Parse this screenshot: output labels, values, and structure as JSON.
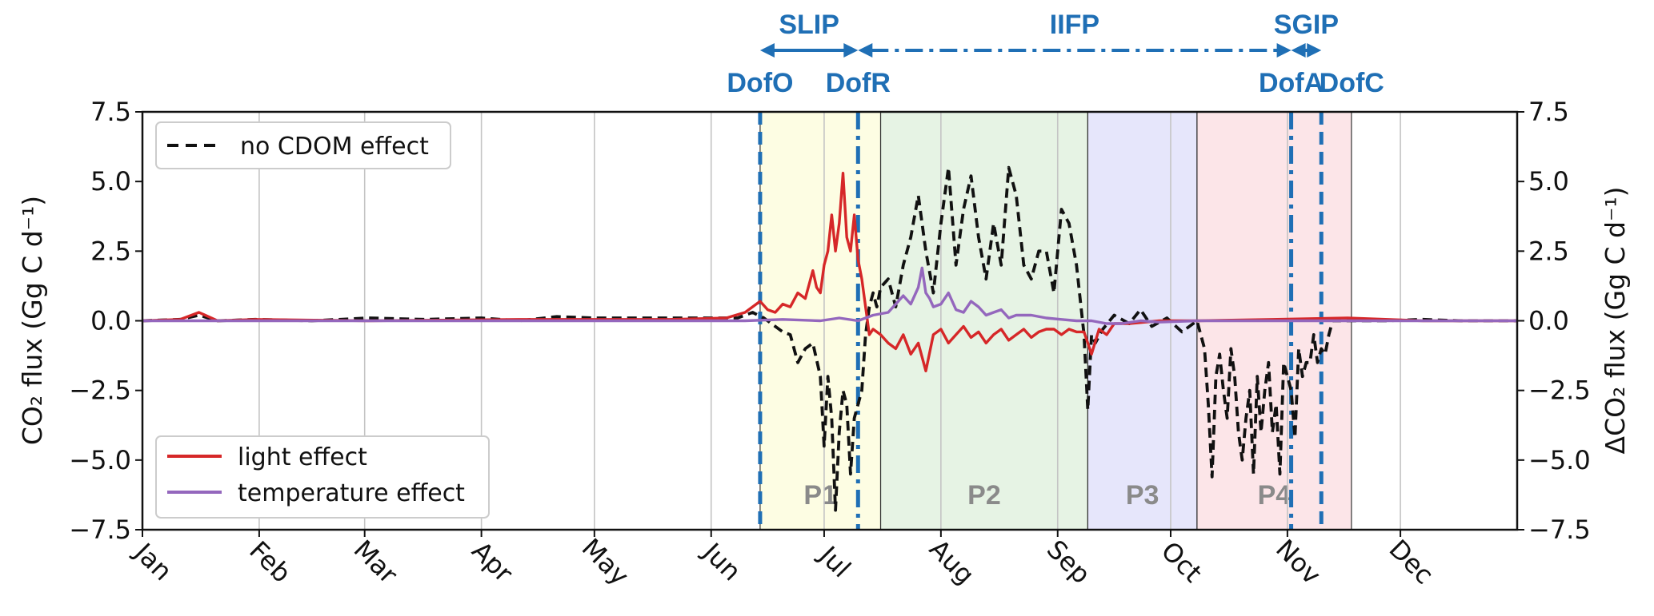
{
  "chart_data": {
    "type": "line",
    "ylabel_left": "CO₂ flux (Gg C d⁻¹)",
    "ylabel_right": "ΔCO₂ flux (Gg C d⁻¹)",
    "ylim": [
      -7.5,
      7.5
    ],
    "xlim": [
      0,
      365
    ],
    "y_ticks": [
      "7.5",
      "5.0",
      "2.5",
      "0.0",
      "−2.5",
      "−5.0",
      "−7.5"
    ],
    "y_tick_values": [
      7.5,
      5.0,
      2.5,
      0.0,
      -2.5,
      -5.0,
      -7.5
    ],
    "months": [
      "Jan",
      "Feb",
      "Mar",
      "Apr",
      "May",
      "Jun",
      "Jul",
      "Aug",
      "Sep",
      "Oct",
      "Nov",
      "Dec"
    ],
    "month_days": [
      0,
      31,
      59,
      90,
      120,
      151,
      181,
      212,
      243,
      273,
      304,
      334
    ],
    "grid": true,
    "phases": [
      {
        "label": "P1",
        "start": 164,
        "end": 196,
        "color": "#fdfde3"
      },
      {
        "label": "P2",
        "start": 196,
        "end": 251,
        "color": "#e6f3e4"
      },
      {
        "label": "P3",
        "start": 251,
        "end": 280,
        "color": "#e6e6fb"
      },
      {
        "label": "P4",
        "start": 280,
        "end": 321,
        "color": "#fce5e8"
      }
    ],
    "markers": [
      {
        "label": "DofO",
        "day": 164,
        "style": "dashed"
      },
      {
        "label": "DofR",
        "day": 190,
        "style": "dashdot"
      },
      {
        "label": "DofA",
        "day": 305,
        "style": "dashdot"
      },
      {
        "label": "DofC",
        "day": 313,
        "style": "dashed"
      }
    ],
    "periods": [
      {
        "label": "SLIP",
        "start": 164,
        "end": 190,
        "style": "solid"
      },
      {
        "label": "IIFP",
        "start": 190,
        "end": 305,
        "style": "dashdot"
      },
      {
        "label": "SGIP",
        "start": 305,
        "end": 313,
        "style": "solid"
      }
    ],
    "legend_upper": {
      "position": "top-left",
      "entries": [
        "no CDOM effect"
      ]
    },
    "legend_lower": {
      "position": "bottom-left",
      "entries": [
        "light effect",
        "temperature effect"
      ]
    },
    "series": [
      {
        "name": "no CDOM effect",
        "color": "#111111",
        "style": "dashed",
        "x": [
          0,
          10,
          15,
          20,
          30,
          45,
          60,
          75,
          90,
          100,
          110,
          120,
          135,
          150,
          158,
          162,
          165,
          168,
          170,
          172,
          174,
          176,
          178,
          180,
          181,
          182,
          183,
          184,
          185,
          186,
          187,
          188,
          189,
          190,
          191,
          192,
          193,
          194,
          195,
          196,
          198,
          200,
          202,
          204,
          206,
          208,
          210,
          212,
          214,
          216,
          218,
          220,
          222,
          224,
          226,
          228,
          230,
          232,
          234,
          236,
          238,
          240,
          242,
          244,
          246,
          248,
          250,
          251,
          252,
          253,
          255,
          258,
          262,
          265,
          268,
          272,
          276,
          280,
          282,
          283,
          284,
          285,
          286,
          287,
          288,
          289,
          290,
          291,
          292,
          293,
          294,
          295,
          296,
          297,
          298,
          299,
          300,
          301,
          302,
          303,
          304,
          305,
          306,
          307,
          308,
          309,
          310,
          311,
          312,
          313,
          314,
          315,
          316,
          318,
          320,
          325,
          330,
          340,
          350,
          365
        ],
        "values": [
          0.0,
          0.05,
          0.2,
          0.0,
          0.05,
          0.0,
          0.1,
          0.05,
          0.1,
          0.0,
          0.15,
          0.1,
          0.1,
          0.1,
          0.1,
          0.3,
          0.1,
          -0.2,
          -0.4,
          -0.5,
          -1.5,
          -1.0,
          -0.8,
          -2.0,
          -4.5,
          -2.0,
          -3.5,
          -6.8,
          -4.0,
          -2.5,
          -3.0,
          -5.5,
          -3.5,
          -3.0,
          -2.5,
          -0.5,
          0.5,
          1.0,
          0.5,
          1.2,
          1.5,
          0.5,
          2.0,
          3.0,
          4.5,
          2.5,
          1.0,
          3.5,
          5.5,
          2.0,
          4.0,
          5.2,
          3.0,
          1.5,
          3.5,
          2.0,
          5.5,
          4.5,
          2.0,
          1.5,
          2.5,
          2.5,
          1.0,
          4.0,
          3.5,
          2.0,
          -0.5,
          -3.2,
          -0.5,
          -0.8,
          -0.3,
          0.2,
          -0.1,
          0.4,
          -0.2,
          0.1,
          -0.4,
          0.0,
          -1.0,
          -3.0,
          -5.6,
          -2.0,
          -1.2,
          -2.5,
          -3.5,
          -1.0,
          -2.0,
          -4.0,
          -5.0,
          -3.5,
          -2.5,
          -5.5,
          -2.0,
          -4.0,
          -2.5,
          -1.5,
          -4.0,
          -3.0,
          -5.5,
          -1.5,
          -2.0,
          -2.5,
          -4.2,
          -1.0,
          -2.0,
          -1.5,
          -1.5,
          -0.5,
          -1.5,
          -1.0,
          -1.2,
          -0.5,
          0.0,
          0.0,
          0.0,
          0.0,
          0.0,
          0.05,
          0.0,
          0.0
        ]
      },
      {
        "name": "light effect",
        "color": "#d62728",
        "style": "solid",
        "x": [
          0,
          10,
          15,
          20,
          30,
          60,
          100,
          140,
          155,
          160,
          164,
          166,
          168,
          170,
          172,
          174,
          176,
          178,
          179,
          180,
          181,
          182,
          183,
          184,
          185,
          186,
          187,
          188,
          189,
          190,
          191,
          192,
          193,
          194,
          196,
          198,
          200,
          202,
          204,
          206,
          208,
          210,
          212,
          214,
          216,
          218,
          220,
          222,
          224,
          226,
          228,
          230,
          232,
          234,
          236,
          238,
          240,
          242,
          244,
          246,
          248,
          250,
          252,
          254,
          256,
          258,
          262,
          270,
          280,
          300,
          320,
          340,
          365
        ],
        "values": [
          0.0,
          0.05,
          0.3,
          0.0,
          0.05,
          0.0,
          0.05,
          0.05,
          0.1,
          0.3,
          0.7,
          0.4,
          0.3,
          0.6,
          0.5,
          1.0,
          0.8,
          1.8,
          1.2,
          1.0,
          2.0,
          2.5,
          3.8,
          2.5,
          3.5,
          5.3,
          3.0,
          2.5,
          3.8,
          2.2,
          1.5,
          0.5,
          -0.5,
          -0.3,
          -0.5,
          -0.8,
          -1.0,
          -0.5,
          -1.2,
          -0.8,
          -1.8,
          -0.5,
          -0.3,
          -0.8,
          -0.5,
          -0.2,
          -0.6,
          -0.4,
          -0.8,
          -0.5,
          -0.3,
          -0.7,
          -0.5,
          -0.3,
          -0.6,
          -0.4,
          -0.3,
          -0.3,
          -0.5,
          -0.3,
          -0.4,
          -0.4,
          -1.2,
          -0.3,
          -0.5,
          -0.1,
          -0.1,
          0.0,
          0.0,
          0.05,
          0.1,
          0.0,
          0.0
        ]
      },
      {
        "name": "temperature effect",
        "color": "#9467bd",
        "style": "solid",
        "x": [
          0,
          30,
          60,
          100,
          140,
          160,
          170,
          180,
          185,
          190,
          194,
          198,
          200,
          202,
          204,
          206,
          207,
          208,
          209,
          210,
          212,
          214,
          216,
          218,
          220,
          222,
          224,
          226,
          228,
          230,
          232,
          236,
          240,
          244,
          248,
          252,
          256,
          260,
          265,
          270,
          280,
          300,
          320,
          365
        ],
        "values": [
          0.0,
          0.0,
          0.0,
          0.0,
          0.0,
          0.0,
          0.05,
          0.0,
          0.1,
          0.0,
          0.2,
          0.3,
          0.6,
          0.9,
          0.6,
          1.2,
          1.9,
          1.0,
          0.8,
          0.5,
          0.6,
          1.0,
          0.4,
          0.3,
          0.7,
          0.5,
          0.2,
          0.3,
          0.4,
          0.1,
          0.2,
          0.2,
          0.1,
          0.05,
          0.0,
          0.0,
          -0.1,
          -0.1,
          0.0,
          -0.05,
          0.0,
          0.0,
          0.0,
          0.0
        ]
      }
    ]
  }
}
